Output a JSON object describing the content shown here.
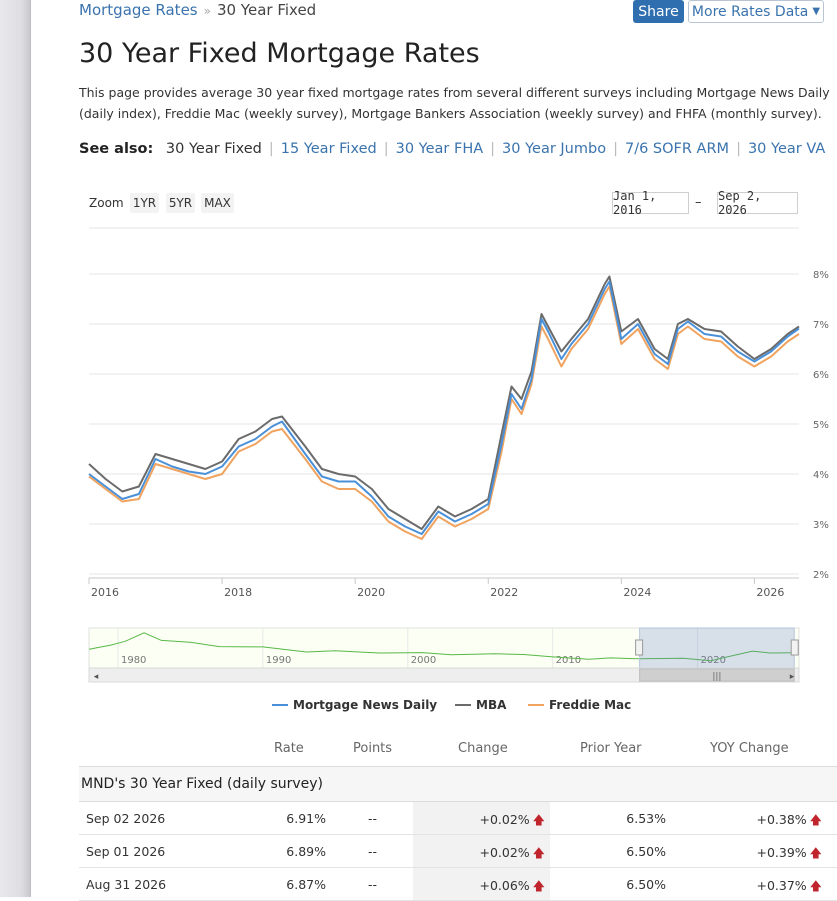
{
  "breadcrumb": {
    "root": "Mortgage Rates",
    "separator": "»",
    "current": "30 Year Fixed"
  },
  "header_buttons": {
    "share": "Share",
    "more": "More Rates Data",
    "more_caret": "▼"
  },
  "title": "30 Year Fixed Mortgage Rates",
  "intro": "This page provides average 30 year fixed mortgage rates from several different surveys including Mortgage News Daily (daily index), Freddie Mac (weekly survey), Mortgage Bankers Association (weekly survey) and FHFA (monthly survey).",
  "see_also": {
    "label": "See also:",
    "current": "30 Year Fixed",
    "links": [
      "15 Year Fixed",
      "30 Year FHA",
      "30 Year Jumbo",
      "7/6 SOFR ARM",
      "30 Year VA"
    ]
  },
  "range_selector": {
    "zoom_label": "Zoom",
    "buttons": [
      "1YR",
      "5YR",
      "MAX"
    ],
    "from": "Jan 1, 2016",
    "dash": "–",
    "to": "Sep 2, 2026"
  },
  "colors": {
    "mnd": "#4a90d9",
    "mba": "#6b6b6b",
    "freddie": "#f0a35e",
    "navigator": "#58b847",
    "link": "#3a73ad"
  },
  "chart_data": {
    "type": "line",
    "y_axis_position": "right",
    "ylim": [
      2,
      8
    ],
    "yticks": [
      "2%",
      "3%",
      "4%",
      "5%",
      "6%",
      "7%",
      "8%"
    ],
    "xlim": [
      2016.0,
      2026.67
    ],
    "xticks": [
      "2016",
      "2018",
      "2020",
      "2022",
      "2024",
      "2026"
    ],
    "legend_position": "bottom",
    "x": [
      2016.0,
      2016.25,
      2016.5,
      2016.75,
      2017.0,
      2017.25,
      2017.5,
      2017.75,
      2018.0,
      2018.25,
      2018.5,
      2018.75,
      2018.9,
      2019.25,
      2019.5,
      2019.75,
      2020.0,
      2020.25,
      2020.5,
      2020.75,
      2021.0,
      2021.25,
      2021.5,
      2021.75,
      2022.0,
      2022.2,
      2022.35,
      2022.5,
      2022.65,
      2022.8,
      2022.9,
      2023.1,
      2023.25,
      2023.5,
      2023.75,
      2023.82,
      2024.0,
      2024.25,
      2024.5,
      2024.7,
      2024.85,
      2025.0,
      2025.25,
      2025.5,
      2025.75,
      2026.0,
      2026.25,
      2026.5,
      2026.67
    ],
    "series": [
      {
        "name": "Mortgage News Daily",
        "values": [
          4.0,
          3.75,
          3.5,
          3.6,
          4.3,
          4.15,
          4.05,
          4.0,
          4.15,
          4.55,
          4.7,
          4.95,
          5.05,
          4.4,
          3.95,
          3.85,
          3.85,
          3.55,
          3.15,
          2.95,
          2.8,
          3.25,
          3.05,
          3.2,
          3.4,
          4.6,
          5.6,
          5.3,
          5.9,
          7.1,
          6.85,
          6.3,
          6.6,
          7.0,
          7.7,
          7.85,
          6.7,
          7.0,
          6.4,
          6.2,
          6.9,
          7.05,
          6.8,
          6.75,
          6.45,
          6.25,
          6.45,
          6.75,
          6.91
        ]
      },
      {
        "name": "MBA",
        "values": [
          4.2,
          3.9,
          3.65,
          3.75,
          4.4,
          4.3,
          4.2,
          4.1,
          4.25,
          4.7,
          4.85,
          5.1,
          5.15,
          4.55,
          4.1,
          4.0,
          3.95,
          3.7,
          3.3,
          3.1,
          2.9,
          3.35,
          3.15,
          3.3,
          3.5,
          4.8,
          5.75,
          5.5,
          6.05,
          7.2,
          6.95,
          6.45,
          6.7,
          7.1,
          7.8,
          7.95,
          6.85,
          7.1,
          6.5,
          6.3,
          7.0,
          7.1,
          6.9,
          6.85,
          6.55,
          6.3,
          6.5,
          6.8,
          6.95
        ]
      },
      {
        "name": "Freddie Mac",
        "values": [
          3.95,
          3.7,
          3.45,
          3.5,
          4.2,
          4.1,
          4.0,
          3.9,
          4.0,
          4.45,
          4.6,
          4.85,
          4.9,
          4.3,
          3.85,
          3.7,
          3.7,
          3.45,
          3.05,
          2.85,
          2.7,
          3.15,
          2.95,
          3.1,
          3.3,
          4.45,
          5.5,
          5.2,
          5.8,
          6.95,
          6.7,
          6.15,
          6.5,
          6.9,
          7.6,
          7.75,
          6.6,
          6.9,
          6.3,
          6.1,
          6.8,
          6.95,
          6.7,
          6.65,
          6.35,
          6.15,
          6.35,
          6.65,
          6.8
        ]
      }
    ]
  },
  "navigator": {
    "labels": [
      "1980",
      "1990",
      "2000",
      "2010",
      "2020"
    ],
    "xlim": [
      1978.0,
      2027.0
    ],
    "x": [
      1978,
      1979.5,
      1980.5,
      1981.8,
      1983,
      1985,
      1987,
      1990,
      1993,
      1995,
      1998,
      2001,
      2003,
      2006,
      2008,
      2010,
      2012.5,
      2014,
      2016,
      2019,
      2020.9,
      2022.5,
      2023.8,
      2025,
      2026.67
    ],
    "values": [
      8.8,
      11.0,
      13.0,
      17.5,
      13.5,
      12.5,
      10.2,
      10.0,
      7.3,
      8.0,
      6.8,
      7.0,
      5.8,
      6.4,
      6.0,
      4.7,
      3.5,
      4.2,
      3.7,
      4.0,
      2.7,
      5.5,
      7.8,
      6.8,
      6.9
    ],
    "selected_range": [
      2016.0,
      2026.67
    ]
  },
  "legend": [
    "Mortgage News Daily",
    "MBA",
    "Freddie Mac"
  ],
  "table": {
    "headers": [
      "Rate",
      "Points",
      "Change",
      "Prior Year",
      "YOY Change"
    ],
    "section_title": "MND's 30 Year Fixed (daily survey)",
    "rows": [
      {
        "date": "Sep 02 2026",
        "rate": "6.91%",
        "points": "--",
        "change": "+0.02%",
        "prior_year": "6.53%",
        "yoy": "+0.38%"
      },
      {
        "date": "Sep 01 2026",
        "rate": "6.89%",
        "points": "--",
        "change": "+0.02%",
        "prior_year": "6.50%",
        "yoy": "+0.39%"
      },
      {
        "date": "Aug 31 2026",
        "rate": "6.87%",
        "points": "--",
        "change": "+0.06%",
        "prior_year": "6.50%",
        "yoy": "+0.37%"
      }
    ],
    "up_arrow": "🡅"
  }
}
